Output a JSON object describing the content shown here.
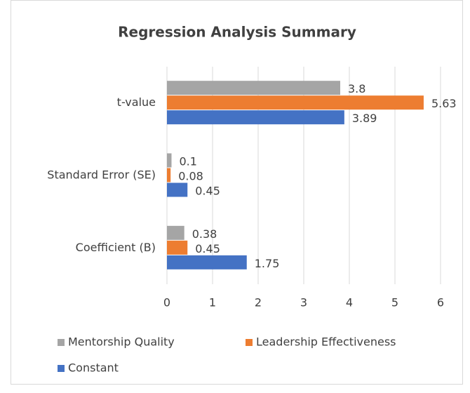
{
  "chart_data": {
    "type": "bar",
    "orientation": "horizontal",
    "title": "Regression Analysis Summary",
    "categories": [
      "t-value",
      "Standard Error (SE)",
      "Coefficient (B)"
    ],
    "series": [
      {
        "name": "Mentorship Quality",
        "color": "#a5a5a5",
        "values": [
          3.8,
          0.1,
          0.38
        ]
      },
      {
        "name": "Leadership Effectiveness",
        "color": "#ed7d31",
        "values": [
          5.63,
          0.08,
          0.45
        ]
      },
      {
        "name": "Constant",
        "color": "#4472c4",
        "values": [
          3.89,
          0.45,
          1.75
        ]
      }
    ],
    "xlim": [
      0,
      6
    ],
    "xticks": [
      0,
      1,
      2,
      3,
      4,
      5,
      6
    ],
    "grid": true,
    "legend": "bottom"
  }
}
